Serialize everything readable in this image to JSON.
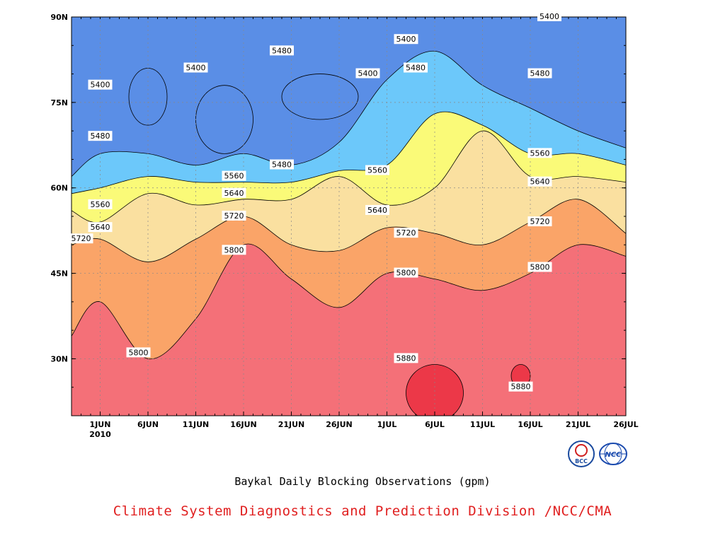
{
  "chart_data": {
    "type": "heatmap",
    "title": "Baykal Daily Blocking Observations (gpm)",
    "credit": "Climate System Diagnostics and Prediction Division /NCC/CMA",
    "x_ticks": [
      "1JUN",
      "6JUN",
      "11JUN",
      "16JUN",
      "21JUN",
      "26JUN",
      "1JUL",
      "6JUL",
      "11JUL",
      "16JUL",
      "21JUL",
      "26JUL"
    ],
    "x_tick_days": [
      1,
      6,
      11,
      16,
      21,
      26,
      31,
      36,
      41,
      46,
      51,
      56
    ],
    "x_year_label": "2010",
    "xlim": [
      -2,
      56
    ],
    "y_ticks": [
      "30N",
      "45N",
      "60N",
      "75N",
      "90N"
    ],
    "y_tick_values": [
      30,
      45,
      60,
      75,
      90
    ],
    "ylim": [
      20,
      90
    ],
    "grid": true,
    "levels": [
      5400,
      5480,
      5560,
      5640,
      5720,
      5800,
      5880
    ],
    "colors": [
      "#4a52f4",
      "#5a8ee6",
      "#6cc8fa",
      "#fafa78",
      "#fae0a0",
      "#faa468",
      "#fa7a4a",
      "#f47078",
      "#ec3848"
    ],
    "bands": [
      {
        "lower": 5800,
        "upper": 5880,
        "boundary_day": [
          -2,
          1,
          6,
          11,
          16,
          21,
          26,
          31,
          36,
          41,
          46,
          51,
          56
        ],
        "boundary_lat": [
          34,
          40,
          30,
          37,
          50,
          44,
          39,
          45,
          44,
          42,
          45,
          50,
          48
        ]
      },
      {
        "lower": 5720,
        "upper": 5800,
        "boundary_day": [
          -2,
          1,
          6,
          11,
          16,
          21,
          26,
          31,
          36,
          41,
          46,
          51,
          56
        ],
        "boundary_lat": [
          50,
          51,
          47,
          51,
          55,
          50,
          49,
          53,
          52,
          50,
          54,
          58,
          52
        ]
      },
      {
        "lower": 5640,
        "upper": 5720,
        "boundary_day": [
          -2,
          1,
          6,
          11,
          16,
          21,
          26,
          31,
          36,
          41,
          46,
          51,
          56
        ],
        "boundary_lat": [
          56,
          54,
          59,
          57,
          58,
          58,
          62,
          57,
          60,
          70,
          62,
          62,
          61
        ]
      },
      {
        "lower": 5560,
        "upper": 5640,
        "boundary_day": [
          -2,
          1,
          6,
          11,
          16,
          21,
          26,
          31,
          36,
          41,
          46,
          51,
          56
        ],
        "boundary_lat": [
          59,
          60,
          62,
          61,
          61,
          61,
          63,
          64,
          73,
          71,
          66,
          66,
          64
        ]
      },
      {
        "lower": 5480,
        "upper": 5560,
        "boundary_day": [
          -2,
          1,
          6,
          11,
          16,
          21,
          26,
          31,
          36,
          41,
          46,
          51,
          56
        ],
        "boundary_lat": [
          62,
          66,
          66,
          64,
          66,
          64,
          68,
          79,
          84,
          78,
          74,
          70,
          67
        ]
      },
      {
        "lower": 5400,
        "upper": 5480,
        "boundary_day": [
          -2,
          1,
          6,
          11,
          16,
          21,
          26,
          31,
          36,
          41,
          46,
          51,
          56
        ],
        "boundary_lat": [
          90,
          90,
          90,
          90,
          90,
          90,
          90,
          90,
          90,
          90,
          90,
          90,
          90
        ]
      }
    ],
    "features": [
      {
        "level": 5400,
        "upper": 5480,
        "center_day": 6,
        "center_lat": 76,
        "radius_day": 2,
        "radius_lat": 5
      },
      {
        "level": 5400,
        "upper": 5480,
        "center_day": 14,
        "center_lat": 72,
        "radius_day": 3,
        "radius_lat": 6
      },
      {
        "level": 5400,
        "upper": 5480,
        "center_day": 24,
        "center_lat": 76,
        "radius_day": 4,
        "radius_lat": 4
      },
      {
        "level": 5880,
        "upper": 5960,
        "center_day": 36,
        "center_lat": 24,
        "radius_day": 3,
        "radius_lat": 5
      },
      {
        "level": 5880,
        "upper": 5960,
        "center_day": 45,
        "center_lat": 27,
        "radius_day": 1,
        "radius_lat": 2
      }
    ],
    "contour_labels": [
      {
        "text": "5400",
        "day": 1,
        "lat": 78
      },
      {
        "text": "5400",
        "day": 11,
        "lat": 81
      },
      {
        "text": "5480",
        "day": 20,
        "lat": 84
      },
      {
        "text": "5400",
        "day": 29,
        "lat": 80
      },
      {
        "text": "5400",
        "day": 33,
        "lat": 86
      },
      {
        "text": "5480",
        "day": 34,
        "lat": 81
      },
      {
        "text": "5400",
        "day": 48,
        "lat": 90
      },
      {
        "text": "5480",
        "day": 47,
        "lat": 80
      },
      {
        "text": "5480",
        "day": 1,
        "lat": 69
      },
      {
        "text": "5480",
        "day": 20,
        "lat": 64
      },
      {
        "text": "5560",
        "day": 30,
        "lat": 63
      },
      {
        "text": "5560",
        "day": 47,
        "lat": 66
      },
      {
        "text": "5560",
        "day": 15,
        "lat": 62
      },
      {
        "text": "5640",
        "day": 15,
        "lat": 59
      },
      {
        "text": "5560",
        "day": 1,
        "lat": 57
      },
      {
        "text": "5640",
        "day": 1,
        "lat": 53
      },
      {
        "text": "5640",
        "day": 30,
        "lat": 56
      },
      {
        "text": "5640",
        "day": 47,
        "lat": 61
      },
      {
        "text": "5720",
        "day": -1,
        "lat": 51
      },
      {
        "text": "5720",
        "day": 15,
        "lat": 55
      },
      {
        "text": "5720",
        "day": 33,
        "lat": 52
      },
      {
        "text": "5720",
        "day": 47,
        "lat": 54
      },
      {
        "text": "5800",
        "day": 15,
        "lat": 49
      },
      {
        "text": "5800",
        "day": 33,
        "lat": 45
      },
      {
        "text": "5800",
        "day": 47,
        "lat": 46
      },
      {
        "text": "5800",
        "day": 5,
        "lat": 31
      },
      {
        "text": "5880",
        "day": 33,
        "lat": 30
      },
      {
        "text": "5880",
        "day": 45,
        "lat": 25
      }
    ]
  },
  "logos": [
    {
      "name": "bcc-logo",
      "text": "BCC"
    },
    {
      "name": "ncc-logo",
      "text": "NCC"
    }
  ],
  "colors": {
    "credit_text": "#e02020",
    "axis": "#000000",
    "grid": "#888888"
  }
}
